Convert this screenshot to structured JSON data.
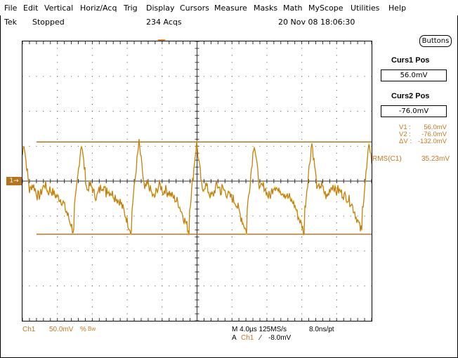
{
  "menu": [
    "File",
    "Edit",
    "Vertical",
    "Horiz/Acq",
    "Trig",
    "Display",
    "Cursors",
    "Measure",
    "Masks",
    "Math",
    "MyScope",
    "Utilities",
    "Help"
  ],
  "status": {
    "brand": "Tek",
    "state": "Stopped",
    "acqs": "234 Acqs",
    "datetime": "20 Nov 08 18:06:30"
  },
  "side_panel": {
    "buttons_label": "Buttons",
    "curs1_title": "Curs1 Pos",
    "curs1_value": "56.0mV",
    "curs2_title": "Curs2 Pos",
    "curs2_value": "-76.0mV",
    "v1_label": "V1 :",
    "v1_value": "56.0mV",
    "v2_label": "V2 :",
    "v2_value": "-76.0mV",
    "dv_label": "ΔV :",
    "dv_value": "-132.0mV",
    "rms_label": "RMS(C1)",
    "rms_value": "35.23mV"
  },
  "bottom": {
    "channel": "Ch1",
    "scale": "50.0mV",
    "bw_symbol": "%",
    "bw": "Bw",
    "timebase": "M 4.0µs 125MS/s",
    "pt": "8.0ns/pt",
    "trigger_prefix": "A",
    "trigger_channel": "Ch1",
    "trigger_slope": "⁄",
    "trigger_level": "-8.0mV"
  },
  "channel_marker": "1→",
  "colors": {
    "trace": "#c27a1f",
    "trace_highlight": "#e6d22a",
    "cursor": "#b8741b"
  }
}
